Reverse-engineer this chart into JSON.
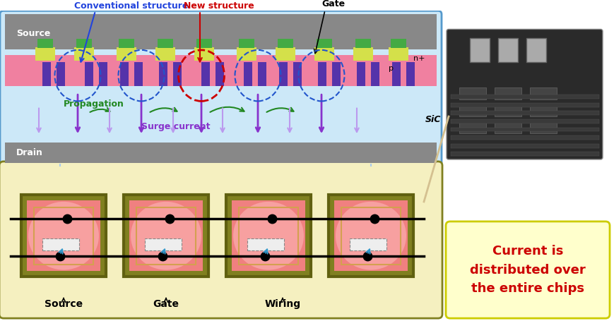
{
  "top_panel": {
    "bg_color": "#add8f0",
    "border_color": "#5599cc",
    "source_label": "Source",
    "drain_label": "Drain",
    "gate_label": "Gate",
    "p_label": "p",
    "n_plus_label": "n+",
    "sic_label": "SiC",
    "conv_label": "Conventional structure",
    "new_label": "New structure",
    "propagation_label": "Propagation",
    "surge_label": "Surge current",
    "source_bar_color": "#888888",
    "drain_bar_color": "#888888",
    "gate_yellow_color": "#d4e04a",
    "gate_green_color": "#4aaa44",
    "pink_color": "#ee88aa",
    "purple_color": "#8844aa",
    "dark_purple_color": "#4422aa",
    "light_blue_bg": "#cce8f8"
  },
  "bottom_panel": {
    "bg_color": "#f5f0c0",
    "border_color": "#808020",
    "chip_bg": "#f08080",
    "chip_border": "#606010",
    "inner_rect_color": "#d4a050",
    "wire_color": "#111111",
    "source_label": "Source",
    "gate_label": "Gate",
    "wiring_label": "Wiring"
  },
  "info_box": {
    "bg_color": "#ffffcc",
    "border_color": "#cccc00",
    "text": "Current is\ndistributed over\nthe entire chips",
    "text_color": "#cc0000"
  }
}
